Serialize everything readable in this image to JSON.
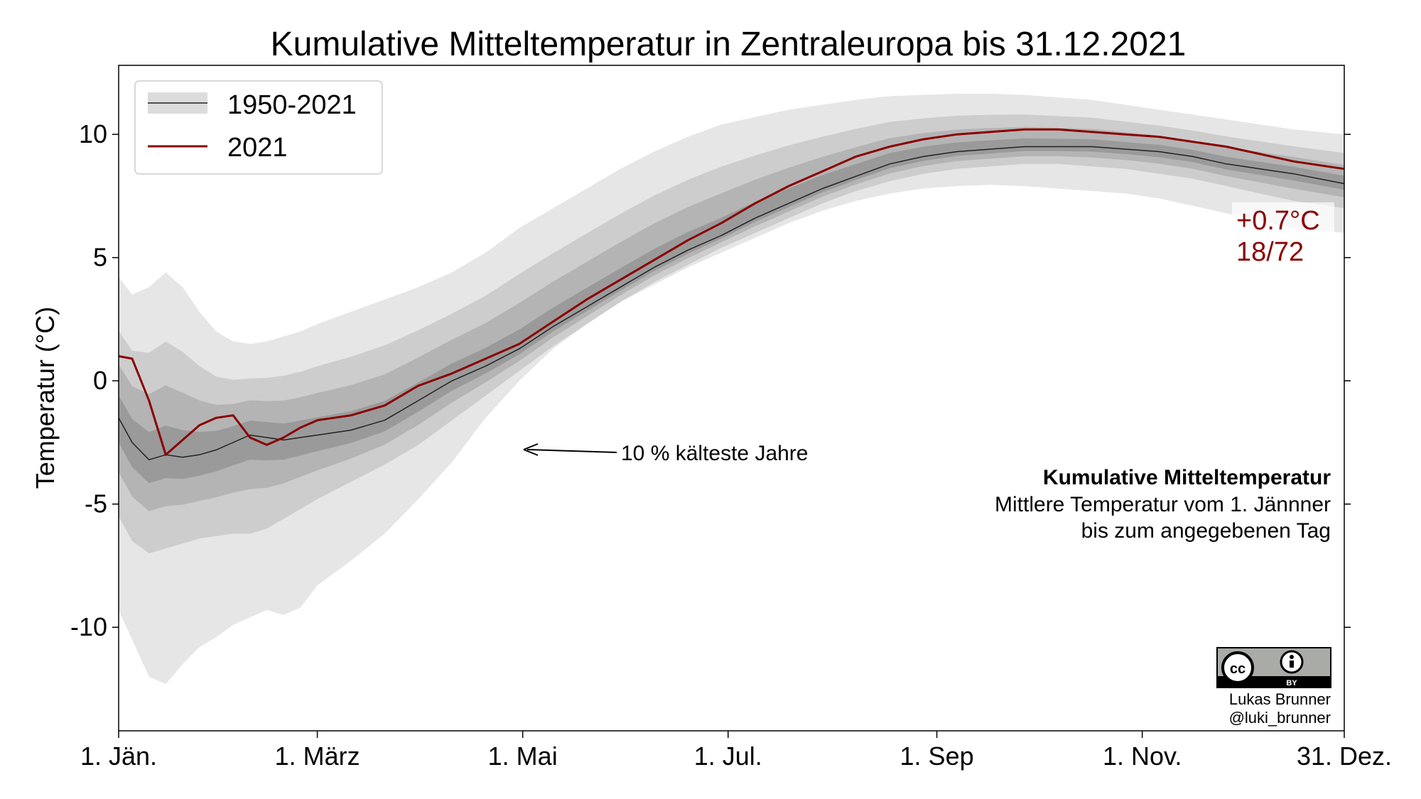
{
  "chart_data": {
    "type": "area",
    "title": "Kumulative Mitteltemperatur in Zentraleuropa bis 31.12.2021",
    "ylabel": "Temperatur (°C)",
    "ylim": [
      -14.2,
      12.8
    ],
    "xlim": [
      1,
      365
    ],
    "yticks": [
      10,
      5,
      0,
      -5,
      -10
    ],
    "xticks": [
      {
        "day": 1,
        "label": "1. Jän."
      },
      {
        "day": 60,
        "label": "1. März"
      },
      {
        "day": 121,
        "label": "1. Mai"
      },
      {
        "day": 182,
        "label": "1. Jul."
      },
      {
        "day": 244,
        "label": "1. Sep"
      },
      {
        "day": 305,
        "label": "1. Nov."
      },
      {
        "day": 365,
        "label": "31. Dez."
      }
    ],
    "x": [
      1,
      5,
      10,
      15,
      20,
      25,
      30,
      35,
      40,
      45,
      50,
      55,
      60,
      70,
      80,
      90,
      100,
      110,
      120,
      130,
      140,
      150,
      160,
      170,
      180,
      190,
      200,
      210,
      220,
      230,
      240,
      250,
      260,
      270,
      280,
      290,
      300,
      310,
      320,
      330,
      340,
      350,
      365
    ],
    "series": [
      {
        "name": "1950-2021",
        "values": [
          -1.5,
          -2.5,
          -3.2,
          -3.0,
          -3.1,
          -3.0,
          -2.8,
          -2.5,
          -2.2,
          -2.3,
          -2.4,
          -2.3,
          -2.2,
          -2.0,
          -1.6,
          -0.8,
          0.0,
          0.6,
          1.3,
          2.2,
          3.0,
          3.8,
          4.6,
          5.3,
          5.9,
          6.6,
          7.2,
          7.8,
          8.3,
          8.8,
          9.1,
          9.3,
          9.4,
          9.5,
          9.5,
          9.5,
          9.4,
          9.3,
          9.1,
          8.8,
          8.6,
          8.4,
          8.0
        ]
      },
      {
        "name": "2021",
        "values": [
          1.0,
          0.9,
          -0.8,
          -3.0,
          -2.4,
          -1.8,
          -1.5,
          -1.4,
          -2.3,
          -2.6,
          -2.3,
          -1.9,
          -1.6,
          -1.4,
          -1.0,
          -0.2,
          0.3,
          0.9,
          1.5,
          2.4,
          3.3,
          4.1,
          4.9,
          5.7,
          6.4,
          7.2,
          7.9,
          8.5,
          9.1,
          9.5,
          9.8,
          10.0,
          10.1,
          10.2,
          10.2,
          10.1,
          10.0,
          9.9,
          9.7,
          9.5,
          9.2,
          8.9,
          8.6
        ]
      }
    ],
    "bands": [
      {
        "level": "outer",
        "lower": [
          -9.3,
          -10.5,
          -12.0,
          -12.3,
          -11.5,
          -10.8,
          -10.4,
          -9.9,
          -9.6,
          -9.3,
          -9.5,
          -9.2,
          -8.3,
          -7.3,
          -6.2,
          -4.8,
          -3.3,
          -1.5,
          0.0,
          1.3,
          2.3,
          3.2,
          3.9,
          4.6,
          5.2,
          5.8,
          6.4,
          6.9,
          7.3,
          7.6,
          7.8,
          7.9,
          7.95,
          7.9,
          7.8,
          7.7,
          7.6,
          7.4,
          7.1,
          6.8,
          6.5,
          6.2,
          6.0
        ],
        "upper": [
          4.2,
          3.5,
          3.8,
          4.4,
          3.8,
          2.8,
          2.0,
          1.6,
          1.5,
          1.6,
          1.8,
          2.0,
          2.3,
          2.8,
          3.3,
          3.8,
          4.4,
          5.2,
          6.2,
          7.0,
          7.8,
          8.6,
          9.3,
          9.9,
          10.4,
          10.7,
          11.0,
          11.2,
          11.4,
          11.55,
          11.6,
          11.65,
          11.65,
          11.6,
          11.5,
          11.4,
          11.2,
          11.0,
          10.8,
          10.6,
          10.4,
          10.2,
          10.0
        ]
      },
      {
        "level": "middle",
        "lower": [
          -5.5,
          -6.5,
          -7.0,
          -6.8,
          -6.6,
          -6.4,
          -6.3,
          -6.2,
          -6.2,
          -6.0,
          -5.6,
          -5.2,
          -4.8,
          -4.1,
          -3.4,
          -2.6,
          -1.6,
          -0.6,
          0.4,
          1.4,
          2.3,
          3.2,
          4.0,
          4.7,
          5.4,
          6.0,
          6.6,
          7.2,
          7.7,
          8.1,
          8.4,
          8.6,
          8.7,
          8.8,
          8.8,
          8.7,
          8.6,
          8.4,
          8.2,
          7.9,
          7.6,
          7.3,
          7.0
        ]
      },
      {
        "level": "inner"
      }
    ],
    "annotations": {
      "coldest": "10 % kälteste Jahre",
      "end_value": "+0.7°C",
      "rank": "18/72"
    },
    "description": {
      "title": "Kumulative Mitteltemperatur",
      "line1": "Mittlere Temperatur vom 1. Jännner",
      "line2": "bis zum angegebenen Tag"
    },
    "legend_position": "top-left",
    "grid": false,
    "colors": {
      "band_outer": "#e6e6e6",
      "band_middle": "#cdcdcd",
      "band_inner": "#b4b4b4",
      "band_core": "#9a9a9a",
      "climatology": "#222222",
      "year_2021": "#8b0000"
    }
  },
  "credit": {
    "author": "Lukas Brunner",
    "handle": "@luki_brunner",
    "license": "BY"
  }
}
